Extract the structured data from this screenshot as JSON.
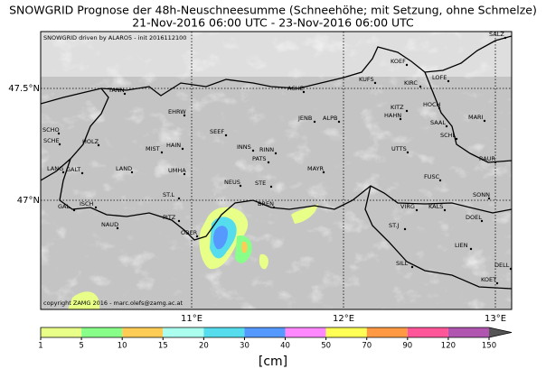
{
  "title": "SNOWGRID Prognose der 48h-Neuschneesumme (Schneehöhe; mit Setzung, ohne Schmelze)",
  "subtitle": "21-Nov-2016 06:00 UTC - 23-Nov-2016 06:00 UTC",
  "map": {
    "note": "SNOWGRID driven by ALARO5 - init 2016112100",
    "copyright": "copyright ZAMG 2016 - marc.olefs@zamg.ac.at",
    "lat_ticks": [
      {
        "value": 47.5,
        "label": "47.5°N"
      },
      {
        "value": 47,
        "label": "47°N"
      }
    ],
    "lon_ticks": [
      {
        "value": 11,
        "label": "11°E"
      },
      {
        "value": 12,
        "label": "12°E"
      },
      {
        "value": 13,
        "label": "13°E"
      }
    ],
    "stations": [
      "SALZ",
      "KOEF",
      "KUFS",
      "KIRC",
      "LOFE",
      "ACHE",
      "TANN",
      "EHRW",
      "JENB",
      "ALPB",
      "HOCH",
      "KITZ",
      "HAHN",
      "MARI",
      "SAAL",
      "SCHL",
      "SEEF",
      "SCHO",
      "SCHE",
      "HOLZ",
      "INNS",
      "RINN",
      "MIST",
      "HAIN",
      "PATS",
      "UTTS",
      "RAUR",
      "LANG",
      "GALT",
      "LAND",
      "UMHA",
      "MAYR",
      "NEUS",
      "STE",
      "FUSC",
      "SONN",
      "ST.L",
      "BREN",
      "ISCH",
      "GAL",
      "KALS",
      "VIRG",
      "DOEL",
      "PITZ",
      "NAUD",
      "OBER",
      "ST.J",
      "LIEN",
      "SILL",
      "DELL",
      "KOET"
    ]
  },
  "colorbar": {
    "label": "[cm]",
    "ticks": [
      1,
      5,
      10,
      15,
      20,
      30,
      40,
      50,
      70,
      90,
      120,
      150
    ],
    "colors": [
      "#e8ff88",
      "#88ff88",
      "#ffcc55",
      "#aaffee",
      "#55ddee",
      "#5599ff",
      "#ff88ff",
      "#ffff55",
      "#ff9944",
      "#ff5599",
      "#b055b0"
    ],
    "extend_color": "#555555"
  }
}
